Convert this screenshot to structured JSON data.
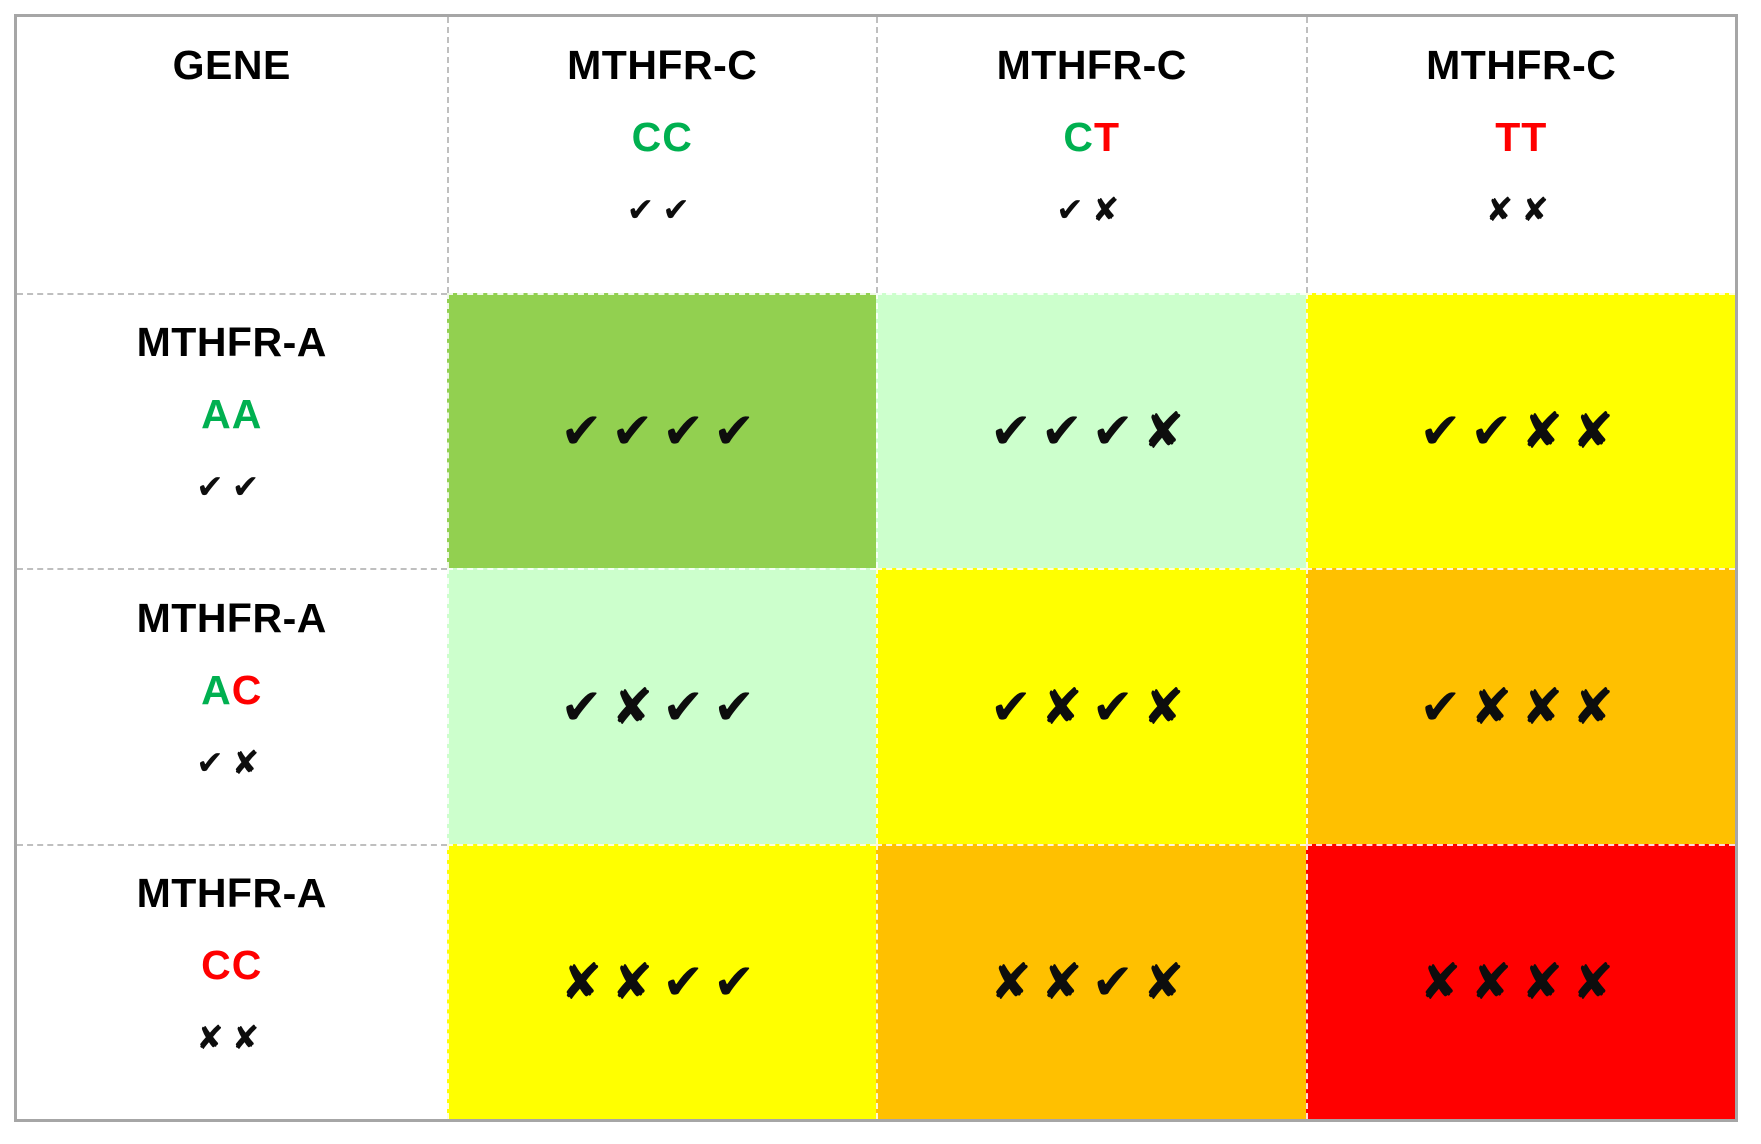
{
  "table": {
    "corner": {
      "label": "GENE"
    },
    "col_headers": [
      {
        "gene": "MTHFR-C",
        "genotype": [
          {
            "ch": "C",
            "color": "#00B050"
          },
          {
            "ch": "C",
            "color": "#00B050"
          }
        ],
        "marks": "✔✔"
      },
      {
        "gene": "MTHFR-C",
        "genotype": [
          {
            "ch": "C",
            "color": "#00B050"
          },
          {
            "ch": "T",
            "color": "#FF0000"
          }
        ],
        "marks": "✔✘"
      },
      {
        "gene": "MTHFR-C",
        "genotype": [
          {
            "ch": "T",
            "color": "#FF0000"
          },
          {
            "ch": "T",
            "color": "#FF0000"
          }
        ],
        "marks": "✘✘"
      }
    ],
    "row_headers": [
      {
        "gene": "MTHFR-A",
        "genotype": [
          {
            "ch": "A",
            "color": "#00B050"
          },
          {
            "ch": "A",
            "color": "#00B050"
          }
        ],
        "marks": "✔✔"
      },
      {
        "gene": "MTHFR-A",
        "genotype": [
          {
            "ch": "A",
            "color": "#00B050"
          },
          {
            "ch": "C",
            "color": "#FF0000"
          }
        ],
        "marks": "✔✘"
      },
      {
        "gene": "MTHFR-A",
        "genotype": [
          {
            "ch": "C",
            "color": "#FF0000"
          },
          {
            "ch": "C",
            "color": "#FF0000"
          }
        ],
        "marks": "✘✘"
      }
    ],
    "cells": [
      [
        {
          "marks": "✔✔✔✔",
          "bg": "#92D050"
        },
        {
          "marks": "✔✔✔✘",
          "bg": "#CCFFCC"
        },
        {
          "marks": "✔✔✘✘",
          "bg": "#FFFF00"
        }
      ],
      [
        {
          "marks": "✔✘✔✔",
          "bg": "#CCFFCC"
        },
        {
          "marks": "✔✘✔✘",
          "bg": "#FFFF00"
        },
        {
          "marks": "✔✘✘✘",
          "bg": "#FFC000"
        }
      ],
      [
        {
          "marks": "✘✘✔✔",
          "bg": "#FFFF00"
        },
        {
          "marks": "✘✘✔✘",
          "bg": "#FFC000"
        },
        {
          "marks": "✘✘✘✘",
          "bg": "#FF0000"
        }
      ]
    ]
  },
  "colors": {
    "good_text": "#00B050",
    "risk_text": "#FF0000",
    "cell_best": "#92D050",
    "cell_good": "#CCFFCC",
    "cell_caution": "#FFFF00",
    "cell_warning": "#FFC000",
    "cell_worst": "#FF0000",
    "outer_border": "#A6A6A6",
    "inner_border": "#BFBFBF",
    "mark_color": "#0d0d0d"
  },
  "chart_data": {
    "type": "heatmap",
    "title": "MTHFR-A x MTHFR-C genotype combination matrix",
    "columns": [
      "MTHFR-C CC",
      "MTHFR-C CT",
      "MTHFR-C TT"
    ],
    "rows": [
      "MTHFR-A AA",
      "MTHFR-A AC",
      "MTHFR-A CC"
    ],
    "column_marks": [
      "✔✔",
      "✔✘",
      "✘✘"
    ],
    "row_marks": [
      "✔✔",
      "✔✘",
      "✘✘"
    ],
    "cell_marks": [
      [
        "✔✔✔✔",
        "✔✔✔✘",
        "✔✔✘✘"
      ],
      [
        "✔✘✔✔",
        "✔✘✔✘",
        "✔✘✘✘"
      ],
      [
        "✘✘✔✔",
        "✘✘✔✘",
        "✘✘✘✘"
      ]
    ],
    "cell_colors": [
      [
        "#92D050",
        "#CCFFCC",
        "#FFFF00"
      ],
      [
        "#CCFFCC",
        "#FFFF00",
        "#FFC000"
      ],
      [
        "#FFFF00",
        "#FFC000",
        "#FF0000"
      ]
    ],
    "legend_position": "none",
    "grid": "dashed"
  }
}
